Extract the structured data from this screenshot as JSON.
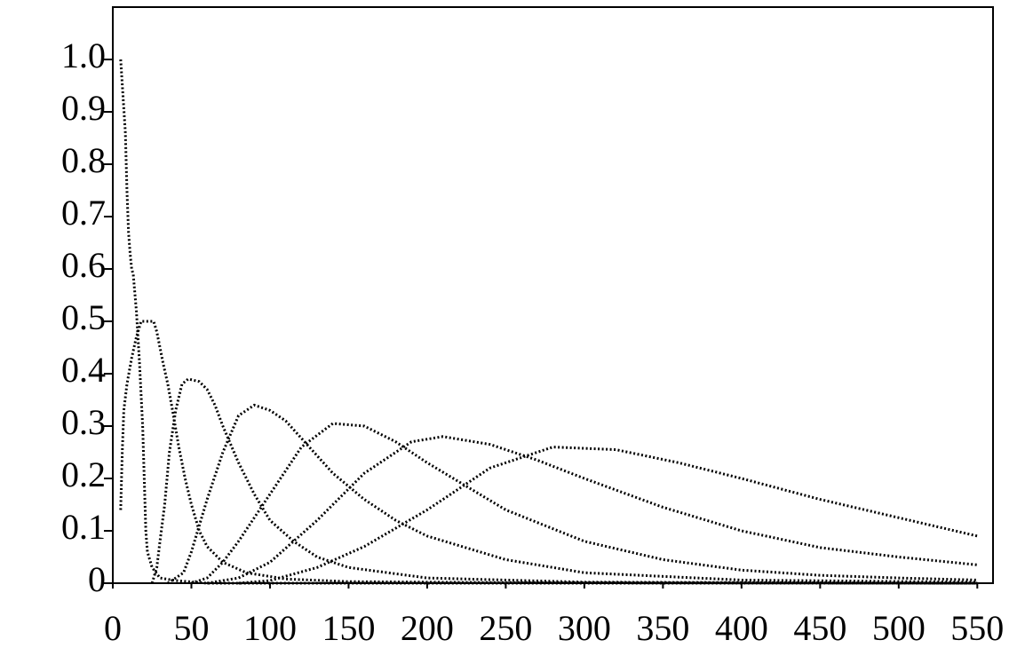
{
  "chart_data": {
    "type": "line",
    "xlim": [
      0,
      560
    ],
    "ylim": [
      0,
      1.1
    ],
    "xticks": [
      0,
      50,
      100,
      150,
      200,
      250,
      300,
      350,
      400,
      450,
      500,
      550
    ],
    "yticks": [
      0,
      0.1,
      0.2,
      0.3,
      0.4,
      0.5,
      0.6,
      0.7,
      0.8,
      0.9,
      {
        "value": 1,
        "label": "1.0"
      }
    ],
    "series": [
      {
        "color": "#000000",
        "x": [
          5,
          8,
          9,
          10,
          11,
          12,
          13,
          15,
          17,
          19,
          20,
          21,
          22,
          25,
          30,
          40,
          60,
          550
        ],
        "values": [
          1,
          0.86,
          0.75,
          0.67,
          0.63,
          0.6,
          0.59,
          0.52,
          0.42,
          0.3,
          0.2,
          0.1,
          0.06,
          0.03,
          0.01,
          0.005,
          0,
          0
        ]
      },
      {
        "color": "#000000",
        "x": [
          5,
          6,
          7,
          9,
          12,
          15,
          18,
          22,
          26,
          28,
          30,
          32,
          35,
          38,
          42,
          46,
          50,
          55,
          60,
          70,
          85,
          110,
          150,
          250,
          550
        ],
        "values": [
          0.14,
          0.25,
          0.33,
          0.38,
          0.43,
          0.47,
          0.5,
          0.5,
          0.5,
          0.48,
          0.45,
          0.42,
          0.38,
          0.33,
          0.26,
          0.2,
          0.15,
          0.1,
          0.07,
          0.04,
          0.02,
          0.008,
          0.003,
          0.001,
          0
        ]
      },
      {
        "color": "#000000",
        "x": [
          25,
          28,
          30,
          33,
          36,
          40,
          44,
          48,
          55,
          60,
          65,
          70,
          80,
          90,
          100,
          115,
          130,
          150,
          200,
          300,
          550
        ],
        "values": [
          0,
          0.03,
          0.08,
          0.15,
          0.25,
          0.33,
          0.38,
          0.39,
          0.385,
          0.37,
          0.34,
          0.3,
          0.23,
          0.17,
          0.12,
          0.08,
          0.05,
          0.03,
          0.01,
          0.002,
          0
        ]
      },
      {
        "color": "#000000",
        "x": [
          35,
          45,
          50,
          55,
          60,
          70,
          80,
          90,
          100,
          110,
          125,
          140,
          160,
          180,
          200,
          250,
          300,
          400,
          550
        ],
        "values": [
          0,
          0.02,
          0.06,
          0.11,
          0.16,
          0.25,
          0.32,
          0.34,
          0.33,
          0.31,
          0.26,
          0.21,
          0.16,
          0.12,
          0.09,
          0.045,
          0.02,
          0.006,
          0.002
        ]
      },
      {
        "color": "#000000",
        "x": [
          50,
          60,
          70,
          80,
          100,
          120,
          140,
          160,
          180,
          200,
          250,
          300,
          350,
          400,
          450,
          500,
          550
        ],
        "values": [
          0,
          0.01,
          0.04,
          0.08,
          0.17,
          0.26,
          0.305,
          0.3,
          0.27,
          0.23,
          0.14,
          0.08,
          0.045,
          0.025,
          0.015,
          0.01,
          0.006
        ]
      },
      {
        "color": "#000000",
        "x": [
          60,
          80,
          100,
          130,
          160,
          190,
          210,
          240,
          270,
          300,
          350,
          400,
          450,
          500,
          550
        ],
        "values": [
          0,
          0.01,
          0.04,
          0.12,
          0.21,
          0.27,
          0.28,
          0.265,
          0.235,
          0.2,
          0.145,
          0.1,
          0.068,
          0.05,
          0.035
        ]
      },
      {
        "color": "#000000",
        "x": [
          80,
          100,
          130,
          160,
          200,
          240,
          280,
          320,
          360,
          400,
          450,
          500,
          550
        ],
        "values": [
          0,
          0.005,
          0.03,
          0.07,
          0.14,
          0.22,
          0.26,
          0.255,
          0.23,
          0.2,
          0.16,
          0.125,
          0.09
        ]
      }
    ]
  }
}
